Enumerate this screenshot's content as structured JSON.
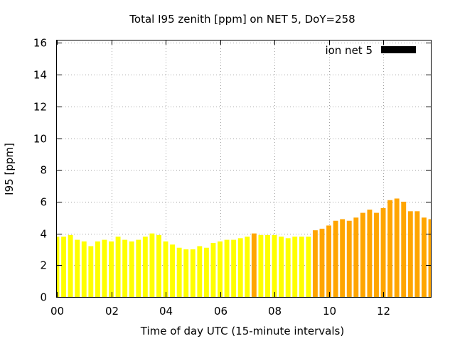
{
  "chart_data": {
    "type": "bar",
    "title": "Total I95 zenith [ppm] on NET 5, DoY=258",
    "xlabel": "Time of day UTC (15-minute intervals)",
    "ylabel": "I95 [ppm]",
    "xlim": [
      0,
      13.75
    ],
    "ylim": [
      0,
      16.2
    ],
    "grid": true,
    "legend": {
      "position": "top-right",
      "label": "ion net 5",
      "color": "#000000"
    },
    "x_ticks": [
      {
        "value": 0,
        "label": "00"
      },
      {
        "value": 2,
        "label": "02"
      },
      {
        "value": 4,
        "label": "04"
      },
      {
        "value": 6,
        "label": "06"
      },
      {
        "value": 8,
        "label": "08"
      },
      {
        "value": 10,
        "label": "10"
      },
      {
        "value": 12,
        "label": "12"
      }
    ],
    "y_ticks": [
      {
        "value": 0,
        "label": "0"
      },
      {
        "value": 2,
        "label": "2"
      },
      {
        "value": 4,
        "label": "4"
      },
      {
        "value": 6,
        "label": "6"
      },
      {
        "value": 8,
        "label": "8"
      },
      {
        "value": 10,
        "label": "10"
      },
      {
        "value": 12,
        "label": "12"
      },
      {
        "value": 14,
        "label": "14"
      },
      {
        "value": 16,
        "label": "16"
      }
    ],
    "bar_interval_hours": 0.25,
    "colors": {
      "low": "#ffff00",
      "medium": "#ffa500"
    },
    "x": [
      0,
      0.25,
      0.5,
      0.75,
      1,
      1.25,
      1.5,
      1.75,
      2,
      2.25,
      2.5,
      2.75,
      3,
      3.25,
      3.5,
      3.75,
      4,
      4.25,
      4.5,
      4.75,
      5,
      5.25,
      5.5,
      5.75,
      6,
      6.25,
      6.5,
      6.75,
      7,
      7.25,
      7.5,
      7.75,
      8,
      8.25,
      8.5,
      8.75,
      9,
      9.25,
      9.5,
      9.75,
      10,
      10.25,
      10.5,
      10.75,
      11,
      11.25,
      11.5,
      11.75,
      12,
      12.25,
      12.5,
      12.75,
      13,
      13.25,
      13.5,
      13.75
    ],
    "values": [
      3.8,
      3.8,
      3.9,
      3.6,
      3.5,
      3.2,
      3.5,
      3.6,
      3.5,
      3.8,
      3.6,
      3.5,
      3.6,
      3.8,
      4.0,
      3.9,
      3.5,
      3.3,
      3.1,
      3.0,
      3.0,
      3.2,
      3.1,
      3.4,
      3.5,
      3.6,
      3.6,
      3.7,
      3.8,
      4.0,
      3.9,
      3.9,
      3.9,
      3.8,
      3.7,
      3.8,
      3.8,
      3.8,
      4.2,
      4.3,
      4.5,
      4.8,
      4.9,
      4.8,
      5.0,
      5.3,
      5.5,
      5.3,
      5.6,
      6.1,
      6.2,
      6.0,
      5.4,
      5.4,
      5.0,
      4.9
    ],
    "levels": [
      "low",
      "low",
      "low",
      "low",
      "low",
      "low",
      "low",
      "low",
      "low",
      "low",
      "low",
      "low",
      "low",
      "low",
      "low",
      "low",
      "low",
      "low",
      "low",
      "low",
      "low",
      "low",
      "low",
      "low",
      "low",
      "low",
      "low",
      "low",
      "low",
      "medium",
      "low",
      "low",
      "low",
      "low",
      "low",
      "low",
      "low",
      "low",
      "medium",
      "medium",
      "medium",
      "medium",
      "medium",
      "medium",
      "medium",
      "medium",
      "medium",
      "medium",
      "medium",
      "medium",
      "medium",
      "medium",
      "medium",
      "medium",
      "medium",
      "medium"
    ]
  }
}
